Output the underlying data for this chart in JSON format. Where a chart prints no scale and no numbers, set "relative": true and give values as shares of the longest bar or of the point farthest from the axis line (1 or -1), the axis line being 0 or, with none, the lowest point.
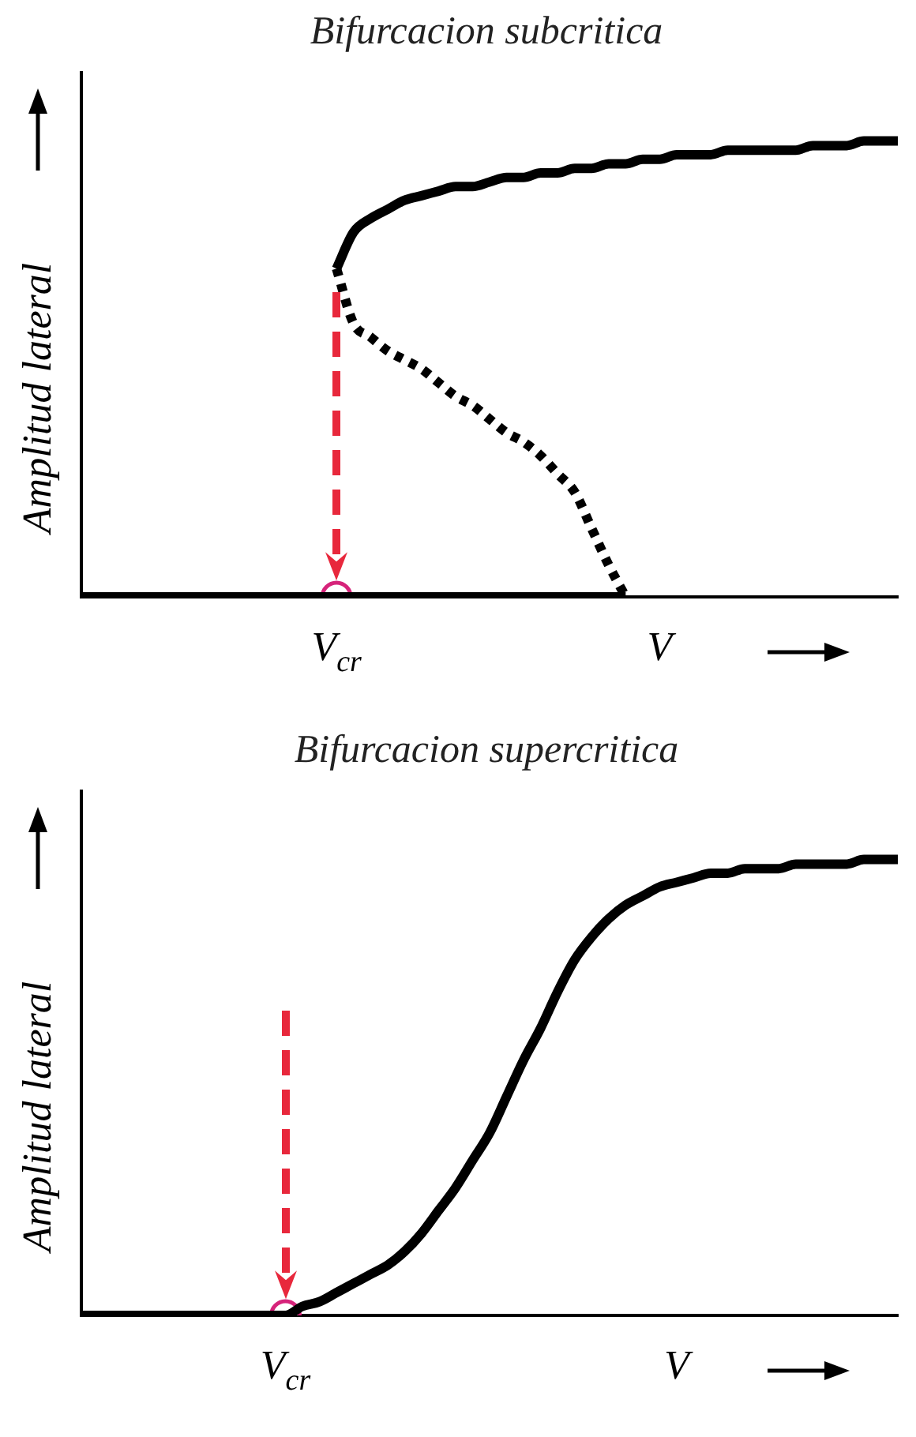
{
  "chart_data": [
    {
      "type": "line",
      "title": "Bifurcacion subcritica",
      "ylabel": "Amplitud lateral",
      "relative": true,
      "legend": false,
      "grid": false,
      "marker": "none",
      "categories": [
        null,
        null,
        null,
        null,
        null,
        null,
        null,
        null,
        null,
        null,
        null,
        null,
        null,
        null,
        null,
        "V$_{cr}$",
        null,
        null,
        null,
        null,
        null,
        null,
        null,
        null,
        null,
        null,
        null,
        null,
        null,
        null,
        null,
        null,
        null,
        null,
        "V",
        null,
        null,
        null,
        null,
        null,
        null,
        null,
        null,
        null,
        null,
        null,
        null,
        null,
        null
      ],
      "series": [
        {
          "color": "#000000",
          "line_style": "solid",
          "values": [
            0,
            0,
            0,
            0,
            0,
            0,
            0,
            0,
            0,
            0,
            0,
            0,
            0,
            0,
            0,
            0,
            0,
            0,
            0,
            0,
            0,
            0,
            0,
            0,
            0,
            0,
            0,
            0,
            0,
            0,
            0,
            0,
            0,
            null,
            null,
            null,
            null,
            null,
            null,
            null,
            null,
            null,
            null,
            null,
            null,
            null,
            null,
            null,
            null
          ]
        },
        {
          "color": "#000000",
          "line_style": "solid",
          "values": [
            null,
            null,
            null,
            null,
            null,
            null,
            null,
            null,
            null,
            null,
            null,
            null,
            null,
            null,
            null,
            0.72,
            0.8,
            0.83,
            0.85,
            0.87,
            0.88,
            0.89,
            0.9,
            0.9,
            0.91,
            0.92,
            0.92,
            0.93,
            0.93,
            0.94,
            0.94,
            0.95,
            0.95,
            0.96,
            0.96,
            0.97,
            0.97,
            0.97,
            0.98,
            0.98,
            0.98,
            0.98,
            0.98,
            0.99,
            0.99,
            0.99,
            1,
            1,
            1
          ]
        },
        {
          "color": "#000000",
          "line_style": "dotted",
          "values": [
            null,
            null,
            null,
            null,
            null,
            null,
            null,
            null,
            null,
            null,
            null,
            null,
            null,
            null,
            null,
            0.72,
            0.6,
            0.57,
            0.54,
            0.52,
            0.5,
            0.47,
            0.44,
            0.42,
            0.39,
            0.36,
            0.34,
            0.31,
            0.27,
            0.23,
            0.15,
            0.07,
            0,
            null,
            null,
            null,
            null,
            null,
            null,
            null,
            null,
            null,
            null,
            null,
            null,
            null,
            null,
            null,
            null
          ]
        },
        {
          "type": "scatter",
          "color": "#d6237a",
          "marker": "circle",
          "values": [
            null,
            null,
            null,
            null,
            null,
            null,
            null,
            null,
            null,
            null,
            null,
            null,
            null,
            null,
            null,
            0,
            null,
            null,
            null,
            null,
            null,
            null,
            null,
            null,
            null,
            null,
            null,
            null,
            null,
            null,
            null,
            null,
            null,
            null,
            null,
            null,
            null,
            null,
            null,
            null,
            null,
            null,
            null,
            null,
            null,
            null,
            null,
            null,
            null
          ]
        }
      ]
    },
    {
      "type": "line",
      "title": "Bifurcacion supercritica",
      "ylabel": "Amplitud lateral",
      "relative": true,
      "legend": false,
      "grid": false,
      "marker": "none",
      "categories": [
        null,
        null,
        null,
        null,
        null,
        null,
        null,
        null,
        null,
        null,
        null,
        null,
        "V$_{cr}$",
        null,
        null,
        null,
        null,
        null,
        null,
        null,
        null,
        null,
        null,
        null,
        null,
        null,
        null,
        null,
        null,
        null,
        null,
        null,
        null,
        null,
        null,
        "V",
        null,
        null,
        null,
        null,
        null,
        null,
        null,
        null,
        null,
        null,
        null,
        null,
        null
      ],
      "series": [
        {
          "color": "#000000",
          "line_style": "solid",
          "values": [
            0,
            0,
            0,
            0,
            0,
            0,
            0,
            0,
            0,
            0,
            0,
            0,
            0,
            0.02,
            0.03,
            0.05,
            0.07,
            0.09,
            0.11,
            0.14,
            0.18,
            0.23,
            0.28,
            0.34,
            0.4,
            0.48,
            0.56,
            0.63,
            0.71,
            0.78,
            0.83,
            0.87,
            0.9,
            0.92,
            0.94,
            0.95,
            0.96,
            0.97,
            0.97,
            0.98,
            0.98,
            0.98,
            0.99,
            0.99,
            0.99,
            0.99,
            1,
            1,
            1
          ]
        },
        {
          "type": "scatter",
          "color": "#d6237a",
          "marker": "circle",
          "values": [
            null,
            null,
            null,
            null,
            null,
            null,
            null,
            null,
            null,
            null,
            null,
            null,
            0,
            null,
            null,
            null,
            null,
            null,
            null,
            null,
            null,
            null,
            null,
            null,
            null,
            null,
            null,
            null,
            null,
            null,
            null,
            null,
            null,
            null,
            null,
            null,
            null,
            null,
            null,
            null,
            null,
            null,
            null,
            null,
            null,
            null,
            null,
            null,
            null
          ]
        }
      ]
    }
  ]
}
